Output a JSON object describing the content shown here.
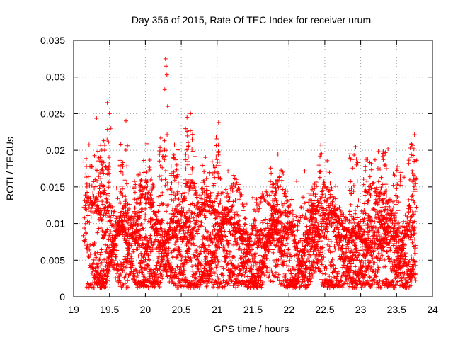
{
  "chart_data": {
    "type": "scatter",
    "title": "Day 356 of 2015, Rate Of TEC Index for receiver urum",
    "xlabel": "GPS time / hours",
    "ylabel": "ROTI / TECUs",
    "xlim": [
      19,
      24
    ],
    "ylim": [
      0,
      0.035
    ],
    "x_ticks": [
      "19",
      "19.5",
      "20",
      "20.5",
      "21",
      "21.5",
      "22",
      "22.5",
      "23",
      "23.5",
      "24"
    ],
    "y_ticks": [
      "0",
      "0.005",
      "0.01",
      "0.015",
      "0.02",
      "0.025",
      "0.03",
      "0.035"
    ],
    "grid": true,
    "marker": "+",
    "marker_color": "#ff0000",
    "series": [
      {
        "name": "ROTI",
        "x_range": [
          19.05,
          23.77
        ],
        "typical_range": [
          0.002,
          0.012
        ],
        "notable_points": [
          {
            "x": 19.47,
            "y": 0.0265
          },
          {
            "x": 19.5,
            "y": 0.025
          },
          {
            "x": 19.52,
            "y": 0.023
          },
          {
            "x": 19.73,
            "y": 0.024
          },
          {
            "x": 20.28,
            "y": 0.0325
          },
          {
            "x": 20.29,
            "y": 0.0315
          },
          {
            "x": 20.3,
            "y": 0.0303
          },
          {
            "x": 20.27,
            "y": 0.0283
          },
          {
            "x": 20.31,
            "y": 0.026
          },
          {
            "x": 20.58,
            "y": 0.0245
          },
          {
            "x": 20.63,
            "y": 0.025
          },
          {
            "x": 21.02,
            "y": 0.0238
          },
          {
            "x": 22.28,
            "y": 0.0017
          },
          {
            "x": 22.93,
            "y": 0.0205
          },
          {
            "x": 23.38,
            "y": 0.0202
          },
          {
            "x": 23.7,
            "y": 0.0218
          },
          {
            "x": 21.1,
            "y": 0.0012
          }
        ]
      }
    ]
  }
}
